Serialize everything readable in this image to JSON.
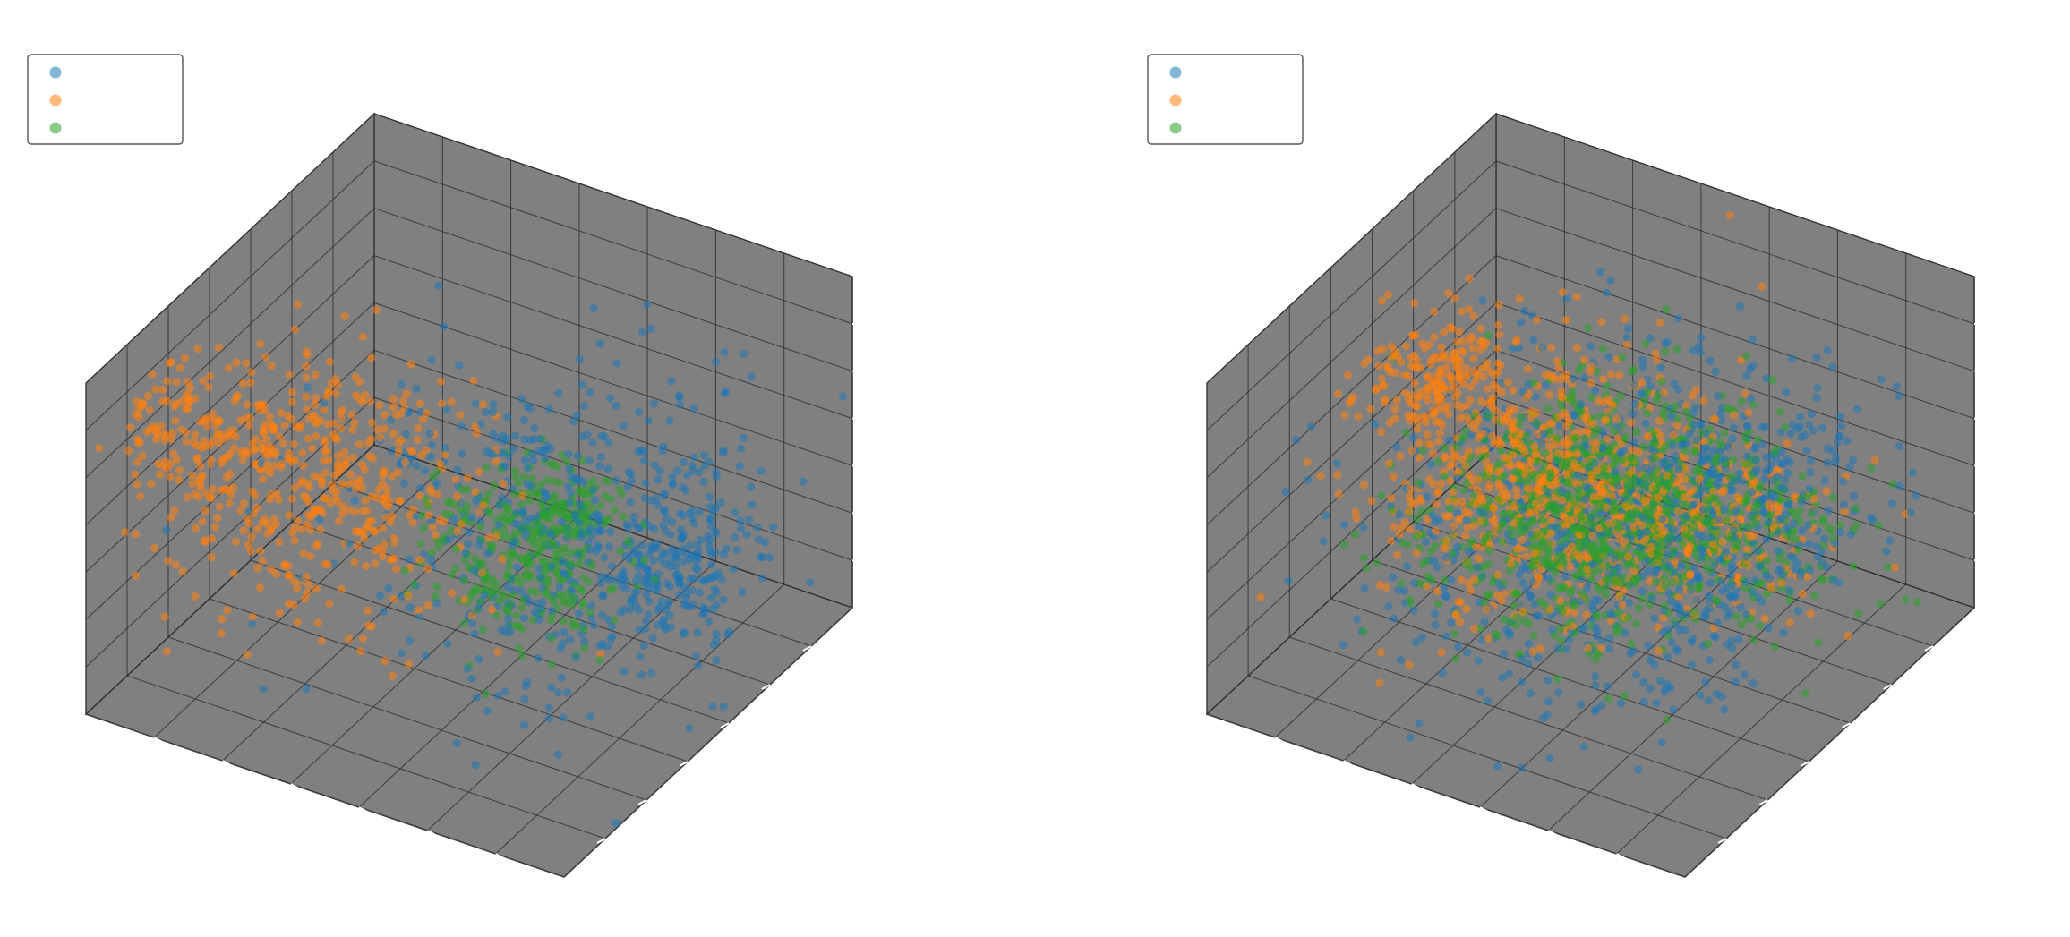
{
  "figure": {
    "background": "#ffffff",
    "pane_color": "#808080",
    "pane_edge_color": "#3f3f3f",
    "grid_color": "#303030",
    "tick_color": "#ffffff",
    "legend_edge_color": "#555555"
  },
  "chart_data": [
    {
      "type": "scatter3d",
      "title": "",
      "xlabel": "",
      "ylabel": "",
      "zlabel": "",
      "grid": true,
      "legend": "upper-left",
      "point_alpha": 0.55,
      "series": [
        {
          "color": "#1f77b4",
          "count": 720,
          "clusters": [
            {
              "center": [
                0.7,
                0.4,
                0.4
              ],
              "spread": [
                0.23,
                0.22,
                0.2
              ],
              "weight": 0.75
            },
            {
              "center": [
                0.8,
                0.3,
                0.25
              ],
              "spread": [
                0.08,
                0.08,
                0.08
              ],
              "weight": 0.25
            }
          ]
        },
        {
          "color": "#ff7f0e",
          "count": 640,
          "clusters": [
            {
              "center": [
                0.28,
                0.7,
                0.6
              ],
              "spread": [
                0.18,
                0.13,
                0.17
              ],
              "weight": 0.85
            },
            {
              "center": [
                0.1,
                0.85,
                0.8
              ],
              "spread": [
                0.06,
                0.06,
                0.09
              ],
              "weight": 0.15
            }
          ]
        },
        {
          "color": "#2ca02c",
          "count": 380,
          "clusters": [
            {
              "center": [
                0.62,
                0.52,
                0.38
              ],
              "spread": [
                0.09,
                0.08,
                0.09
              ],
              "weight": 0.7
            },
            {
              "center": [
                0.55,
                0.25,
                0.28
              ],
              "spread": [
                0.06,
                0.06,
                0.05
              ],
              "weight": 0.3
            }
          ]
        }
      ]
    },
    {
      "type": "scatter3d",
      "title": "",
      "xlabel": "",
      "ylabel": "",
      "zlabel": "",
      "grid": true,
      "legend": "upper-left",
      "point_alpha": 0.55,
      "series": [
        {
          "color": "#1f77b4",
          "count": 900,
          "clusters": [
            {
              "center": [
                0.55,
                0.5,
                0.4
              ],
              "spread": [
                0.22,
                0.24,
                0.18
              ],
              "weight": 0.8
            },
            {
              "center": [
                0.75,
                0.35,
                0.55
              ],
              "spread": [
                0.12,
                0.15,
                0.12
              ],
              "weight": 0.2
            }
          ]
        },
        {
          "color": "#ff7f0e",
          "count": 1100,
          "clusters": [
            {
              "center": [
                0.45,
                0.58,
                0.6
              ],
              "spread": [
                0.16,
                0.17,
                0.15
              ],
              "weight": 0.55
            },
            {
              "center": [
                0.5,
                0.25,
                0.25
              ],
              "spread": [
                0.17,
                0.12,
                0.09
              ],
              "weight": 0.3
            },
            {
              "center": [
                0.28,
                0.65,
                0.88
              ],
              "spread": [
                0.07,
                0.07,
                0.06
              ],
              "weight": 0.15
            }
          ]
        },
        {
          "color": "#2ca02c",
          "count": 1100,
          "clusters": [
            {
              "center": [
                0.52,
                0.55,
                0.5
              ],
              "spread": [
                0.14,
                0.16,
                0.13
              ],
              "weight": 0.65
            },
            {
              "center": [
                0.55,
                0.25,
                0.25
              ],
              "spread": [
                0.17,
                0.12,
                0.09
              ],
              "weight": 0.35
            }
          ]
        }
      ]
    }
  ]
}
